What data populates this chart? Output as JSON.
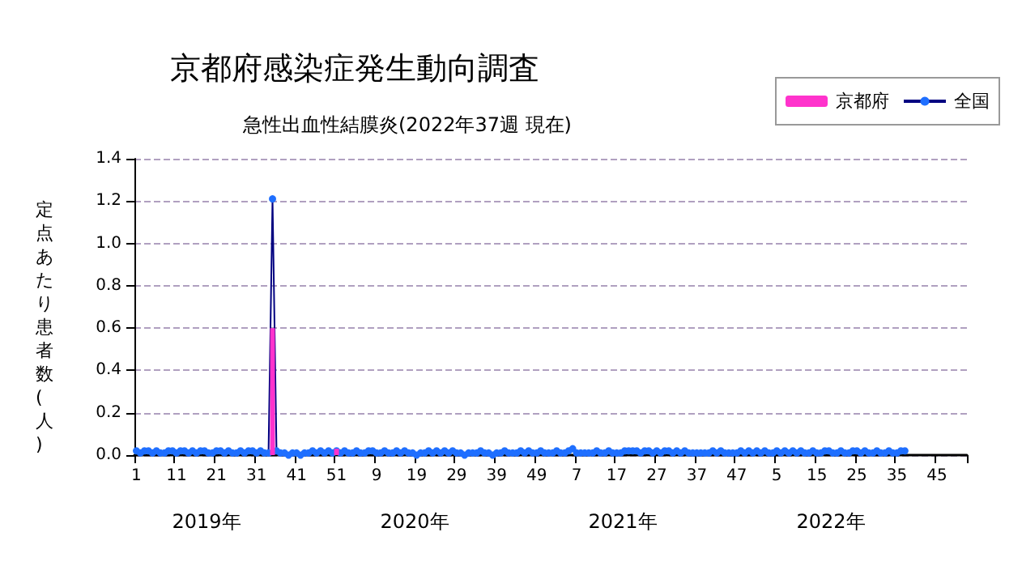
{
  "chart_data": {
    "type": "bar",
    "title": "京都府感染症発生動向調査",
    "subtitle": "急性出血性結膜炎(2022年37週 現在)",
    "ylabel": "定点あたり患者数(人)",
    "categories": [
      "1",
      null,
      null,
      null,
      null,
      null,
      null,
      null,
      null,
      null,
      "11",
      null,
      null,
      null,
      null,
      null,
      null,
      null,
      null,
      null,
      "21",
      null,
      null,
      null,
      null,
      null,
      null,
      null,
      null,
      null,
      "31",
      null,
      null,
      null,
      null,
      null,
      null,
      null,
      null,
      null,
      "41",
      null,
      null,
      null,
      null,
      null,
      null,
      null,
      null,
      null,
      "51",
      null,
      null,
      null,
      null,
      null,
      null,
      null,
      null,
      null,
      "9",
      null,
      null,
      null,
      null,
      null,
      null,
      null,
      null,
      null,
      "19",
      null,
      null,
      null,
      null,
      null,
      null,
      null,
      null,
      null,
      "29",
      null,
      null,
      null,
      null,
      null,
      null,
      null,
      null,
      null,
      "39",
      null,
      null,
      null,
      null,
      null,
      null,
      null,
      null,
      null,
      "49",
      null,
      null,
      null,
      null,
      null,
      null,
      null,
      null,
      null,
      "7",
      null,
      null,
      null,
      null,
      null,
      null,
      null,
      null,
      null,
      "17",
      null,
      null,
      null,
      null,
      null,
      null,
      null,
      null,
      null,
      "27",
      null,
      null,
      null,
      null,
      null,
      null,
      null,
      null,
      null,
      "37",
      null,
      null,
      null,
      null,
      null,
      null,
      null,
      null,
      null,
      "47",
      null,
      null,
      null,
      null,
      null,
      null,
      null,
      null,
      null,
      "5",
      null,
      null,
      null,
      null,
      null,
      null,
      null,
      null,
      null,
      "15",
      null,
      null,
      null,
      null,
      null,
      null,
      null,
      null,
      null,
      "25",
      null,
      null,
      null,
      null,
      null,
      null,
      null,
      null,
      null,
      "35",
      null,
      null,
      null,
      null,
      null,
      null,
      null,
      null,
      null,
      "45",
      null,
      null,
      null,
      null,
      null,
      null,
      null
    ],
    "series": [
      {
        "name": "京都府",
        "type": "bar",
        "color": "#ff33cc",
        "values": [
          0,
          0,
          0,
          0,
          0,
          0,
          0,
          0,
          0,
          0,
          0,
          0,
          0,
          0,
          0,
          0,
          0,
          0,
          0,
          0,
          0,
          0,
          0,
          0,
          0,
          0,
          0,
          0,
          0,
          0,
          0,
          0,
          0,
          0,
          0.6,
          0,
          0,
          0,
          0,
          0,
          0,
          0,
          0,
          0,
          0,
          0,
          0,
          0,
          0,
          0,
          0.03,
          0,
          0,
          0,
          0,
          0,
          0,
          0,
          0,
          0,
          0,
          0,
          0,
          0,
          0,
          0,
          0,
          0,
          0,
          0,
          0,
          0,
          0,
          0,
          0,
          0,
          0,
          0,
          0,
          0,
          0,
          0,
          0,
          0,
          0,
          0,
          0,
          0,
          0,
          0,
          0,
          0,
          0,
          0,
          0,
          0,
          0,
          0,
          0,
          0,
          0,
          0,
          0,
          0,
          0,
          0,
          0,
          0,
          0,
          0,
          0,
          0,
          0,
          0,
          0,
          0,
          0,
          0,
          0,
          0,
          0,
          0,
          0,
          0,
          0,
          0,
          0,
          0,
          0,
          0,
          0,
          0,
          0,
          0,
          0,
          0,
          0,
          0,
          0,
          0,
          0,
          0,
          0,
          0,
          0,
          0,
          0,
          0,
          0,
          0,
          0,
          0,
          0,
          0,
          0,
          0,
          0,
          0,
          0,
          0,
          0,
          0,
          0,
          0,
          0,
          0,
          0,
          0,
          0,
          0,
          0,
          0,
          0,
          0,
          0,
          0,
          0,
          0,
          0,
          0,
          0,
          0,
          0,
          0,
          0,
          0,
          0,
          0,
          0,
          0,
          0,
          0,
          0,
          null,
          null,
          null,
          null,
          null,
          null,
          null,
          null,
          null,
          null,
          null,
          null,
          null,
          null,
          null
        ]
      },
      {
        "name": "全国",
        "type": "line",
        "color": "#1f6fff",
        "values": [
          0.02,
          0.01,
          0.02,
          0.02,
          0.01,
          0.02,
          0.01,
          0.01,
          0.02,
          0.02,
          0.01,
          0.02,
          0.02,
          0.01,
          0.02,
          0.01,
          0.02,
          0.02,
          0.01,
          0.01,
          0.02,
          0.02,
          0.01,
          0.02,
          0.01,
          0.01,
          0.02,
          0.01,
          0.02,
          0.02,
          0.01,
          0.02,
          0.01,
          0.01,
          1.21,
          0.02,
          0.01,
          0.01,
          0.0,
          0.01,
          0.01,
          0.0,
          0.01,
          0.01,
          0.02,
          0.01,
          0.02,
          0.01,
          0.02,
          0.01,
          0.02,
          0.01,
          0.02,
          0.01,
          0.01,
          0.02,
          0.01,
          0.01,
          0.02,
          0.02,
          0.01,
          0.01,
          0.02,
          0.01,
          0.01,
          0.02,
          0.01,
          0.02,
          0.01,
          0.01,
          0.0,
          0.01,
          0.01,
          0.02,
          0.01,
          0.02,
          0.01,
          0.02,
          0.01,
          0.02,
          0.01,
          0.01,
          0.0,
          0.01,
          0.01,
          0.01,
          0.02,
          0.01,
          0.01,
          0.0,
          0.01,
          0.01,
          0.02,
          0.01,
          0.01,
          0.01,
          0.02,
          0.01,
          0.02,
          0.01,
          0.01,
          0.02,
          0.01,
          0.01,
          0.01,
          0.02,
          0.01,
          0.01,
          0.02,
          0.03,
          0.01,
          0.01,
          0.01,
          0.01,
          0.01,
          0.02,
          0.01,
          0.01,
          0.02,
          0.01,
          0.01,
          0.01,
          0.02,
          0.02,
          0.02,
          0.02,
          0.01,
          0.02,
          0.02,
          0.01,
          0.02,
          0.01,
          0.02,
          0.02,
          0.01,
          0.02,
          0.01,
          0.02,
          0.01,
          0.01,
          0.01,
          0.01,
          0.01,
          0.01,
          0.02,
          0.01,
          0.02,
          0.01,
          0.01,
          0.01,
          0.01,
          0.02,
          0.01,
          0.02,
          0.01,
          0.02,
          0.01,
          0.02,
          0.01,
          0.01,
          0.02,
          0.01,
          0.02,
          0.01,
          0.02,
          0.01,
          0.02,
          0.01,
          0.01,
          0.02,
          0.01,
          0.01,
          0.02,
          0.02,
          0.01,
          0.01,
          0.02,
          0.01,
          0.01,
          0.02,
          0.02,
          0.01,
          0.02,
          0.01,
          0.01,
          0.02,
          0.01,
          0.01,
          0.02,
          0.01,
          0.01,
          0.02,
          0.02,
          null,
          null,
          null,
          null,
          null,
          null,
          null,
          null,
          null,
          null,
          null,
          null,
          null,
          null,
          null
        ]
      }
    ],
    "ylim": [
      0,
      1.4
    ],
    "yticks": [
      {
        "value": 0,
        "label": "0.0"
      },
      {
        "value": 0.2,
        "label": "0.2"
      },
      {
        "value": 0.4,
        "label": "0.4"
      },
      {
        "value": 0.6,
        "label": "0.6"
      },
      {
        "value": 0.8,
        "label": "0.8"
      },
      {
        "value": 1,
        "label": "1.0"
      },
      {
        "value": 1.2,
        "label": "1.2"
      },
      {
        "value": 1.4,
        "label": "1.4"
      }
    ],
    "grid": "y",
    "legend": "top right",
    "marker": "circle",
    "annotations": [
      "2019年",
      "2020年",
      "2021年",
      "2022年"
    ]
  }
}
